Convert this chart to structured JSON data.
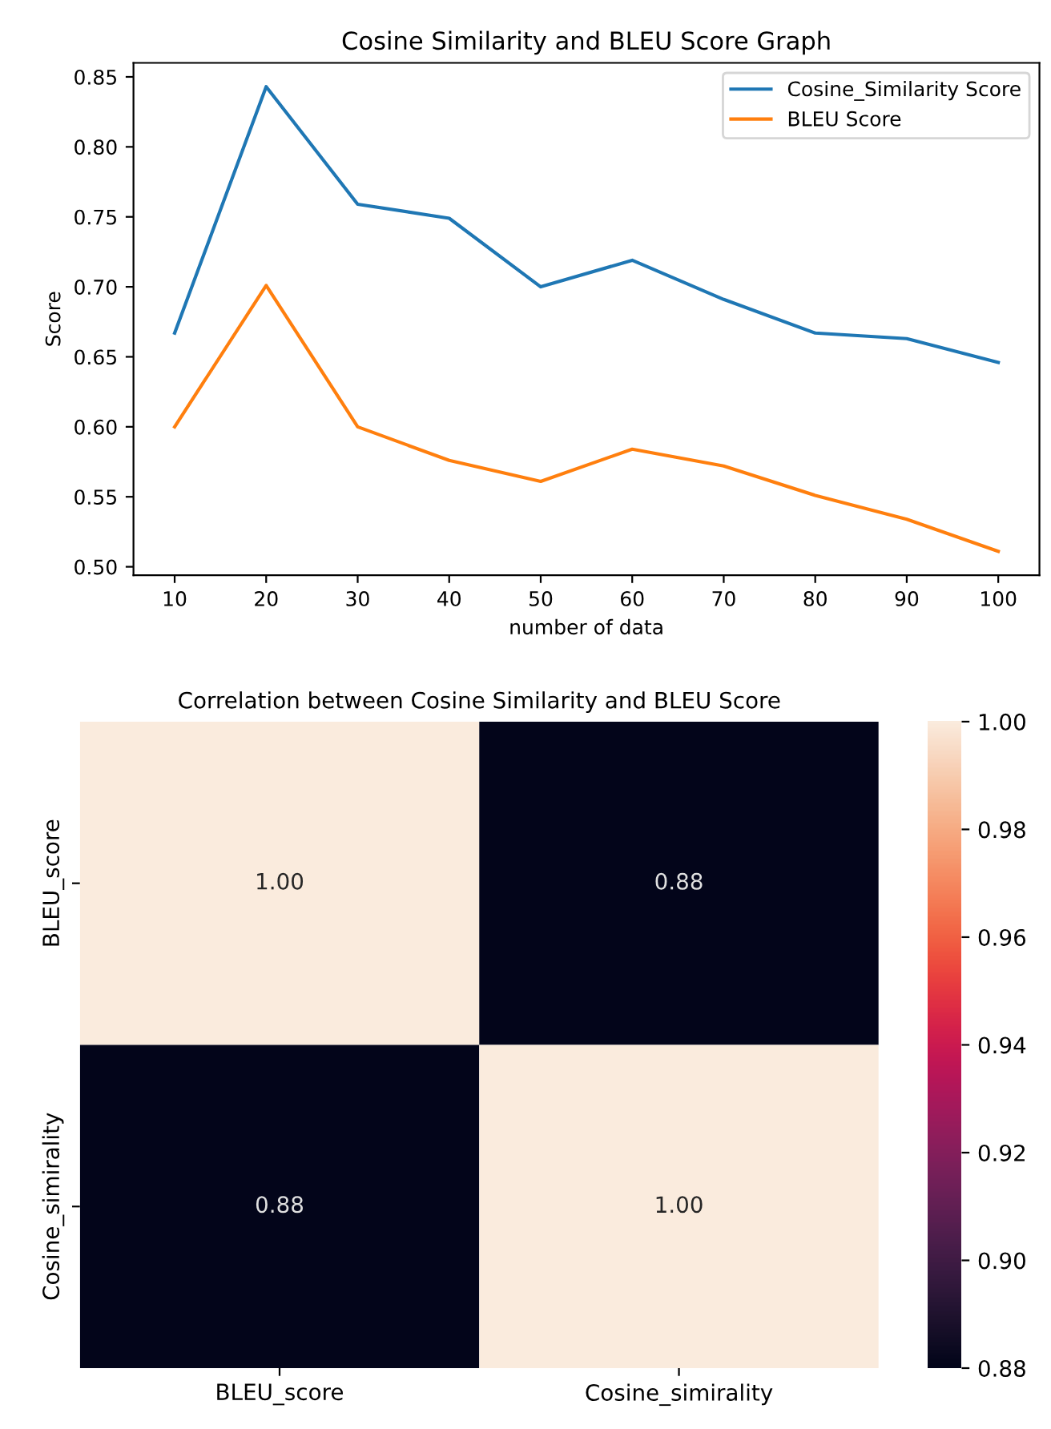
{
  "chart_data": [
    {
      "type": "line",
      "title": "Cosine Similarity and BLEU Score Graph",
      "xlabel": "number of data",
      "ylabel": "Score",
      "x": [
        10,
        20,
        30,
        40,
        50,
        60,
        70,
        80,
        90,
        100
      ],
      "series": [
        {
          "name": "Cosine_Similarity Score",
          "color": "#1f77b4",
          "values": [
            0.667,
            0.843,
            0.759,
            0.749,
            0.7,
            0.719,
            0.691,
            0.667,
            0.663,
            0.646
          ]
        },
        {
          "name": "BLEU Score",
          "color": "#ff7f0e",
          "values": [
            0.6,
            0.701,
            0.6,
            0.576,
            0.561,
            0.584,
            0.572,
            0.551,
            0.534,
            0.511
          ]
        }
      ],
      "xlim": [
        5.5,
        104.5
      ],
      "ylim": [
        0.494,
        0.86
      ],
      "xticks": [
        10,
        20,
        30,
        40,
        50,
        60,
        70,
        80,
        90,
        100
      ],
      "yticks": [
        {
          "value": 0.5,
          "label": "0.50"
        },
        {
          "value": 0.55,
          "label": "0.55"
        },
        {
          "value": 0.6,
          "label": "0.60"
        },
        {
          "value": 0.65,
          "label": "0.65"
        },
        {
          "value": 0.7,
          "label": "0.70"
        },
        {
          "value": 0.75,
          "label": "0.75"
        },
        {
          "value": 0.8,
          "label": "0.80"
        },
        {
          "value": 0.85,
          "label": "0.85"
        }
      ],
      "legend": "top right",
      "grid": false
    },
    {
      "type": "heatmap",
      "title": "Correlation between Cosine Similarity and BLEU Score",
      "categories": [
        "BLEU_score",
        "Cosine_simirality"
      ],
      "y_categories": [
        "BLEU_score",
        "Cosine_simirality"
      ],
      "cells": [
        [
          1.0,
          0.88
        ],
        [
          0.88,
          1.0
        ]
      ],
      "cell_labels": [
        [
          "1.00",
          "0.88"
        ],
        [
          "0.88",
          "1.00"
        ]
      ],
      "clim": [
        0.88,
        1.0
      ],
      "cticks": [
        {
          "value": 0.88,
          "label": "0.88"
        },
        {
          "value": 0.9,
          "label": "0.90"
        },
        {
          "value": 0.92,
          "label": "0.92"
        },
        {
          "value": 0.94,
          "label": "0.94"
        },
        {
          "value": 0.96,
          "label": "0.96"
        },
        {
          "value": 0.98,
          "label": "0.98"
        },
        {
          "value": 1.0,
          "label": "1.00"
        }
      ]
    }
  ]
}
